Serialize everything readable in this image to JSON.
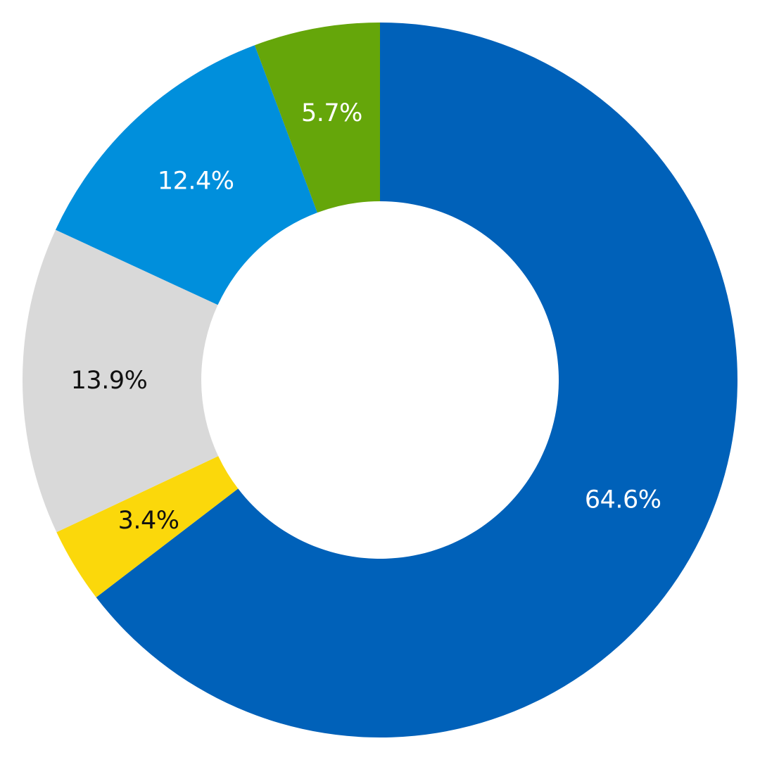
{
  "chart_data": {
    "type": "pie",
    "donut": true,
    "title": "",
    "slices": [
      {
        "label": "64.6%",
        "value": 64.6,
        "color": "#0061B9",
        "label_color": "#FFFFFF"
      },
      {
        "label": "3.4%",
        "value": 3.4,
        "color": "#FBD80B",
        "label_color": "#111111"
      },
      {
        "label": "13.9%",
        "value": 13.9,
        "color": "#D9D9D9",
        "label_color": "#111111"
      },
      {
        "label": "12.4%",
        "value": 12.4,
        "color": "#008FDC",
        "label_color": "#FFFFFF"
      },
      {
        "label": "5.7%",
        "value": 5.7,
        "color": "#65A60A",
        "label_color": "#FFFFFF"
      }
    ],
    "start_angle_deg": 0,
    "direction": "clockwise",
    "legend": "none"
  }
}
